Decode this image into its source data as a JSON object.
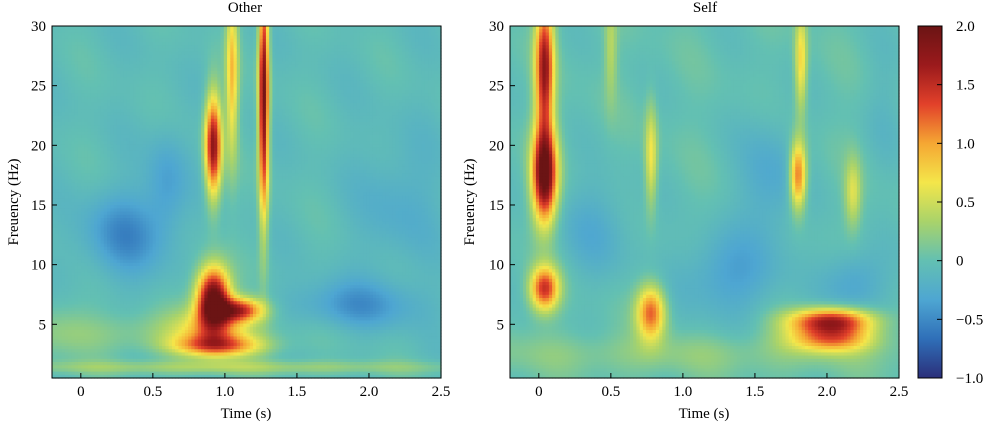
{
  "chart_data": [
    {
      "type": "heatmap",
      "title": "Other",
      "xlabel": "Time (s)",
      "ylabel": "Freuency (Hz)",
      "xlim": [
        -0.2,
        2.5
      ],
      "ylim": [
        0.5,
        30
      ],
      "x_ticks": [
        0,
        0.5,
        1.0,
        1.5,
        2.0,
        2.5
      ],
      "x_tick_labels": [
        "0",
        "0.5",
        "1.0",
        "1.5",
        "2.0",
        "2.5"
      ],
      "y_ticks": [
        5,
        10,
        15,
        20,
        25,
        30
      ],
      "y_tick_labels": [
        "5",
        "10",
        "15",
        "20",
        "25",
        "30"
      ],
      "base_value": -0.05,
      "features": [
        {
          "t": 0.92,
          "f": 7.2,
          "st": 0.08,
          "sf": 1.8,
          "v": 2.15
        },
        {
          "t": 1.1,
          "f": 6.2,
          "st": 0.12,
          "sf": 0.7,
          "v": 1.4
        },
        {
          "t": 0.92,
          "f": 4.5,
          "st": 0.18,
          "sf": 1.5,
          "v": 0.7
        },
        {
          "t": 0.95,
          "f": 3.2,
          "st": 0.22,
          "sf": 0.6,
          "v": 0.9
        },
        {
          "t": 0.92,
          "f": 20.0,
          "st": 0.04,
          "sf": 3.0,
          "v": 1.8
        },
        {
          "t": 1.27,
          "f": 24.0,
          "st": 0.025,
          "sf": 7.0,
          "v": 2.0
        },
        {
          "t": 1.05,
          "f": 26.0,
          "st": 0.03,
          "sf": 5.0,
          "v": 0.9
        },
        {
          "t": 0.6,
          "f": 4.2,
          "st": 0.7,
          "sf": 1.2,
          "v": 0.25
        },
        {
          "t": 1.0,
          "f": 1.4,
          "st": 1.3,
          "sf": 0.4,
          "v": 0.35
        },
        {
          "t": 0.3,
          "f": 12.5,
          "st": 0.2,
          "sf": 2.5,
          "v": -0.45
        },
        {
          "t": 0.6,
          "f": 17.0,
          "st": 0.1,
          "sf": 3.0,
          "v": -0.3
        },
        {
          "t": 1.9,
          "f": 6.5,
          "st": 0.3,
          "sf": 1.5,
          "v": -0.4
        },
        {
          "t": 2.2,
          "f": 15.0,
          "st": 0.2,
          "sf": 4.0,
          "v": -0.2
        },
        {
          "t": -0.1,
          "f": 5.0,
          "st": 0.15,
          "sf": 2.0,
          "v": 0.15
        }
      ],
      "value_range": [
        -1.0,
        2.0
      ]
    },
    {
      "type": "heatmap",
      "title": "Self",
      "xlabel": "Time (s)",
      "ylabel": "Freuency (Hz)",
      "xlim": [
        -0.2,
        2.5
      ],
      "ylim": [
        0.5,
        30
      ],
      "x_ticks": [
        0,
        0.5,
        1.0,
        1.5,
        2.0,
        2.5
      ],
      "x_tick_labels": [
        "0",
        "0.5",
        "1.0",
        "1.5",
        "2.0",
        "2.5"
      ],
      "y_ticks": [
        5,
        10,
        15,
        20,
        25,
        30
      ],
      "y_tick_labels": [
        "5",
        "10",
        "15",
        "20",
        "25",
        "30"
      ],
      "base_value": 0.0,
      "features": [
        {
          "t": 0.04,
          "f": 17.5,
          "st": 0.06,
          "sf": 2.8,
          "v": 2.1
        },
        {
          "t": 0.04,
          "f": 26.5,
          "st": 0.045,
          "sf": 4.0,
          "v": 1.7
        },
        {
          "t": 0.04,
          "f": 8.0,
          "st": 0.07,
          "sf": 1.3,
          "v": 1.45
        },
        {
          "t": 0.78,
          "f": 6.0,
          "st": 0.07,
          "sf": 1.6,
          "v": 1.25
        },
        {
          "t": 0.78,
          "f": 19.0,
          "st": 0.03,
          "sf": 3.0,
          "v": 0.7
        },
        {
          "t": 1.8,
          "f": 17.5,
          "st": 0.04,
          "sf": 2.0,
          "v": 1.3
        },
        {
          "t": 1.82,
          "f": 27.0,
          "st": 0.03,
          "sf": 3.0,
          "v": 0.8
        },
        {
          "t": 2.03,
          "f": 5.3,
          "st": 0.2,
          "sf": 0.75,
          "v": 1.6
        },
        {
          "t": 2.03,
          "f": 3.8,
          "st": 0.2,
          "sf": 0.8,
          "v": 1.1
        },
        {
          "t": 2.18,
          "f": 16.0,
          "st": 0.04,
          "sf": 2.0,
          "v": 0.55
        },
        {
          "t": 0.5,
          "f": 28.0,
          "st": 0.03,
          "sf": 3.0,
          "v": 0.4
        },
        {
          "t": 1.0,
          "f": 2.5,
          "st": 1.4,
          "sf": 1.2,
          "v": 0.2
        },
        {
          "t": 1.3,
          "f": 9.0,
          "st": 0.25,
          "sf": 2.5,
          "v": -0.35
        },
        {
          "t": 0.4,
          "f": 13.0,
          "st": 0.2,
          "sf": 3.0,
          "v": -0.25
        },
        {
          "t": 1.6,
          "f": 17.0,
          "st": 0.15,
          "sf": 4.0,
          "v": -0.3
        },
        {
          "t": 2.2,
          "f": 8.5,
          "st": 0.15,
          "sf": 2.0,
          "v": -0.35
        },
        {
          "t": 2.4,
          "f": 23.0,
          "st": 0.1,
          "sf": 4.0,
          "v": -0.1
        }
      ],
      "value_range": [
        -1.0,
        2.0
      ]
    }
  ],
  "colorbar": {
    "min": -1.0,
    "max": 2.0,
    "ticks": [
      2.0,
      1.5,
      1.0,
      0.5,
      0,
      -0.5,
      -1.0
    ],
    "tick_labels": [
      "2.0",
      "1.5",
      "1.0",
      "0.5",
      "0",
      "−0.5",
      "−1.0"
    ],
    "colors": [
      "#2b2f7a",
      "#2f6fb8",
      "#4ea6d2",
      "#63c0b2",
      "#a9d36a",
      "#f4e64a",
      "#f5a733",
      "#e2412a",
      "#9b1a1c",
      "#6b1414"
    ]
  }
}
